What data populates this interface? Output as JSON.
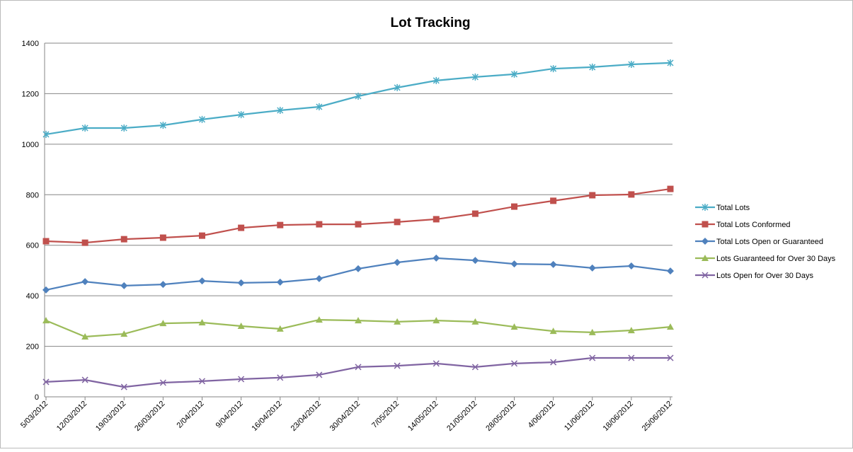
{
  "chart_data": {
    "type": "line",
    "title": "Lot Tracking",
    "categories": [
      "5/03/2012",
      "12/03/2012",
      "19/03/2012",
      "26/03/2012",
      "2/04/2012",
      "9/04/2012",
      "16/04/2012",
      "23/04/2012",
      "30/04/2012",
      "7/05/2012",
      "14/05/2012",
      "21/05/2012",
      "28/05/2012",
      "4/06/2012",
      "11/06/2012",
      "18/06/2012",
      "25/06/2012"
    ],
    "series": [
      {
        "name": "Total Lots",
        "color": "#4bacc6",
        "marker": "star",
        "values": [
          1039,
          1064,
          1064,
          1075,
          1098,
          1117,
          1134,
          1148,
          1190,
          1224,
          1252,
          1266,
          1277,
          1299,
          1305,
          1316,
          1322
        ]
      },
      {
        "name": "Total Lots Conformed",
        "color": "#c0504d",
        "marker": "square",
        "values": [
          616,
          610,
          624,
          630,
          638,
          669,
          680,
          683,
          683,
          692,
          703,
          725,
          753,
          776,
          798,
          801,
          823
        ]
      },
      {
        "name": "Total Lots Open or Guaranteed",
        "color": "#4f81bd",
        "marker": "diamond",
        "values": [
          423,
          456,
          440,
          445,
          459,
          451,
          454,
          468,
          507,
          532,
          549,
          540,
          526,
          524,
          510,
          518,
          498
        ]
      },
      {
        "name": "Lots Guaranteed for Over 30 Days",
        "color": "#9bbb59",
        "marker": "triangle",
        "values": [
          302,
          238,
          249,
          291,
          294,
          280,
          269,
          305,
          302,
          297,
          302,
          297,
          277,
          260,
          255,
          263,
          277
        ]
      },
      {
        "name": "Lots Open for Over 30 Days",
        "color": "#8064a2",
        "marker": "x",
        "values": [
          59,
          67,
          39,
          56,
          62,
          70,
          76,
          87,
          118,
          123,
          132,
          118,
          132,
          137,
          154,
          154,
          154
        ]
      }
    ],
    "ylim": [
      0,
      1400
    ],
    "yticks": [
      0,
      200,
      400,
      600,
      800,
      1000,
      1200,
      1400
    ],
    "grid": true,
    "legend": "right"
  }
}
